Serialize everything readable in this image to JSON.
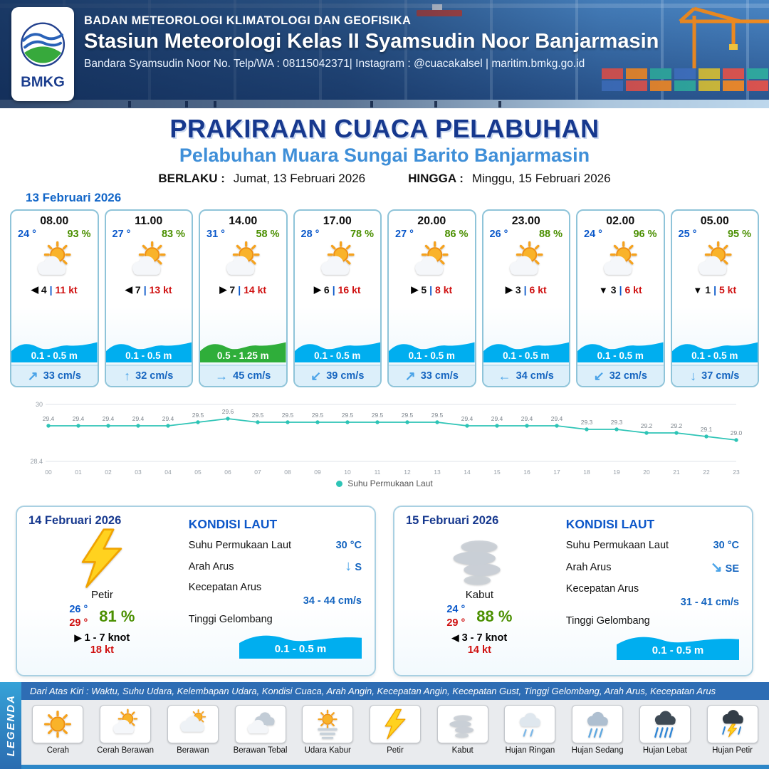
{
  "header": {
    "agency": "BADAN METEOROLOGI KLIMATOLOGI DAN GEOFISIKA",
    "station": "Stasiun Meteorologi Kelas II Syamsudin Noor Banjarmasin",
    "contact": "Bandara Syamsudin Noor No. Telp/WA : 08115042371| Instagram : @cuacakalsel | maritim.bmkg.go.id",
    "logo_text": "BMKG"
  },
  "title": {
    "main": "PRAKIRAAN CUACA PELABUHAN",
    "subtitle": "Pelabuhan Muara Sungai Barito Banjarmasin",
    "valid_label": "BERLAKU :",
    "valid_value": "Jumat, 13 Februari 2026",
    "until_label": "HINGGA :",
    "until_value": "Minggu, 15 Februari 2026"
  },
  "forecast": {
    "date": "13 Februari 2026",
    "gust_separator": "|",
    "cards": [
      {
        "time": "08.00",
        "temp": "24 °",
        "rh": "93 %",
        "icon": "cerah-berawan",
        "wind_arrow": "◀",
        "wind": "4",
        "gust": "11 kt",
        "wave": "0.1 - 0.5 m",
        "wave_type": "blue",
        "cur_arrow": "↗",
        "current": "33 cm/s"
      },
      {
        "time": "11.00",
        "temp": "27 °",
        "rh": "83 %",
        "icon": "cerah-berawan",
        "wind_arrow": "◀",
        "wind": "7",
        "gust": "13 kt",
        "wave": "0.1 - 0.5 m",
        "wave_type": "blue",
        "cur_arrow": "↑",
        "current": "32 cm/s"
      },
      {
        "time": "14.00",
        "temp": "31 °",
        "rh": "58 %",
        "icon": "cerah-berawan",
        "wind_arrow": "▶",
        "wind": "7",
        "gust": "14 kt",
        "wave": "0.5 - 1.25 m",
        "wave_type": "green",
        "cur_arrow": "→",
        "current": "45 cm/s"
      },
      {
        "time": "17.00",
        "temp": "28 °",
        "rh": "78 %",
        "icon": "cerah-berawan",
        "wind_arrow": "▶",
        "wind": "6",
        "gust": "16 kt",
        "wave": "0.1 - 0.5 m",
        "wave_type": "blue",
        "cur_arrow": "↙",
        "current": "39 cm/s"
      },
      {
        "time": "20.00",
        "temp": "27 °",
        "rh": "86 %",
        "icon": "cerah-berawan",
        "wind_arrow": "▶",
        "wind": "5",
        "gust": "8 kt",
        "wave": "0.1 - 0.5 m",
        "wave_type": "blue",
        "cur_arrow": "↗",
        "current": "33 cm/s"
      },
      {
        "time": "23.00",
        "temp": "26 °",
        "rh": "88 %",
        "icon": "cerah-berawan",
        "wind_arrow": "▶",
        "wind": "3",
        "gust": "6 kt",
        "wave": "0.1 - 0.5 m",
        "wave_type": "blue",
        "cur_arrow": "←",
        "current": "34 cm/s"
      },
      {
        "time": "02.00",
        "temp": "24 °",
        "rh": "96 %",
        "icon": "cerah-berawan",
        "wind_arrow": "▼",
        "wind": "3",
        "gust": "6 kt",
        "wave": "0.1 - 0.5 m",
        "wave_type": "blue",
        "cur_arrow": "↙",
        "current": "32 cm/s"
      },
      {
        "time": "05.00",
        "temp": "25 °",
        "rh": "95 %",
        "icon": "cerah-berawan",
        "wind_arrow": "▼",
        "wind": "1",
        "gust": "5 kt",
        "wave": "0.1 - 0.5 m",
        "wave_type": "blue",
        "cur_arrow": "↓",
        "current": "37 cm/s"
      }
    ]
  },
  "chart_data": {
    "type": "line",
    "title": "",
    "x": [
      "00",
      "01",
      "02",
      "03",
      "04",
      "05",
      "06",
      "07",
      "08",
      "09",
      "10",
      "11",
      "12",
      "13",
      "14",
      "15",
      "16",
      "17",
      "18",
      "19",
      "20",
      "21",
      "22",
      "23"
    ],
    "values": [
      29.4,
      29.4,
      29.4,
      29.4,
      29.4,
      29.5,
      29.6,
      29.5,
      29.5,
      29.5,
      29.5,
      29.5,
      29.5,
      29.5,
      29.4,
      29.4,
      29.4,
      29.4,
      29.3,
      29.3,
      29.2,
      29.2,
      29.1,
      29.0
    ],
    "ylim": [
      28.4,
      30
    ],
    "yticks": [
      28.4,
      30
    ],
    "series_name": "Suhu Permukaan Laut",
    "line_color": "#2ec4b6",
    "grid": true,
    "legend_position": "bottom"
  },
  "days": [
    {
      "date": "14 Februari 2026",
      "icon": "petir",
      "weather": "Petir",
      "temp_min": "26 °",
      "temp_max": "29 °",
      "rh": "81 %",
      "wind_arrow": "▶",
      "wind": "1 - 7 knot",
      "gust": "18 kt",
      "sea": {
        "title": "KONDISI LAUT",
        "sst_label": "Suhu Permukaan Laut",
        "sst": "30 °C",
        "dir_label": "Arah Arus",
        "dir_arrow": "↓",
        "dir": "S",
        "speed_label": "Kecepatan Arus",
        "speed": "34 - 44 cm/s",
        "wave_label": "Tinggi Gelombang",
        "wave": "0.1 - 0.5 m"
      }
    },
    {
      "date": "15 Februari 2026",
      "icon": "kabut",
      "weather": "Kabut",
      "temp_min": "24 °",
      "temp_max": "29 °",
      "rh": "88 %",
      "wind_arrow": "◀",
      "wind": "3 - 7 knot",
      "gust": "14 kt",
      "sea": {
        "title": "KONDISI LAUT",
        "sst_label": "Suhu Permukaan Laut",
        "sst": "30 °C",
        "dir_label": "Arah Arus",
        "dir_arrow": "↘",
        "dir": "SE",
        "speed_label": "Kecepatan Arus",
        "speed": "31 - 41 cm/s",
        "wave_label": "Tinggi Gelombang",
        "wave": "0.1 - 0.5 m"
      }
    }
  ],
  "legend": {
    "title": "LEGENDA",
    "description": "Dari Atas Kiri : Waktu, Suhu Udara, Kelembapan Udara, Kondisi Cuaca, Arah Angin, Kecepatan Angin, Kecepatan Gust, Tinggi Gelombang, Arah Arus, Kecepatan Arus",
    "items": [
      {
        "label": "Cerah",
        "icon": "cerah"
      },
      {
        "label": "Cerah Berawan",
        "icon": "cerah-berawan"
      },
      {
        "label": "Berawan",
        "icon": "berawan"
      },
      {
        "label": "Berawan Tebal",
        "icon": "berawan-tebal"
      },
      {
        "label": "Udara Kabur",
        "icon": "udara-kabur"
      },
      {
        "label": "Petir",
        "icon": "petir"
      },
      {
        "label": "Kabut",
        "icon": "kabut"
      },
      {
        "label": "Hujan Ringan",
        "icon": "hujan-ringan"
      },
      {
        "label": "Hujan Sedang",
        "icon": "hujan-sedang"
      },
      {
        "label": "Hujan Lebat",
        "icon": "hujan-lebat"
      },
      {
        "label": "Hujan Petir",
        "icon": "hujan-petir"
      }
    ]
  }
}
